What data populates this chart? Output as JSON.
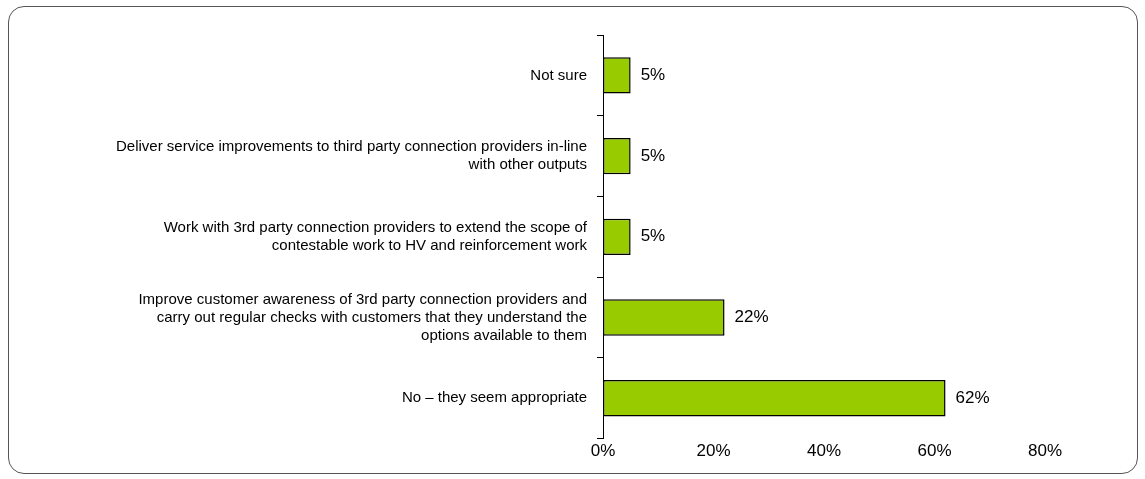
{
  "chart_data": {
    "type": "bar",
    "orientation": "horizontal",
    "categories": [
      "Not sure",
      "Deliver service improvements to third party connection providers in-line with other outputs",
      "Work with 3rd party connection providers to extend the scope of contestable work to HV and reinforcement work",
      "Improve customer awareness of 3rd party connection providers and carry out regular checks with customers that they understand the options available to them",
      "No – they seem appropriate"
    ],
    "values": [
      5,
      5,
      5,
      22,
      62
    ],
    "value_labels": [
      "5%",
      "5%",
      "5%",
      "22%",
      "62%"
    ],
    "color": "#99cc00",
    "xlim": [
      0,
      80
    ],
    "xticks": [
      {
        "value": 0,
        "label": "0%"
      },
      {
        "value": 20,
        "label": "20%"
      },
      {
        "value": 40,
        "label": "40%"
      },
      {
        "value": 60,
        "label": "60%"
      },
      {
        "value": 80,
        "label": "80%"
      }
    ],
    "grid": false,
    "legend": false
  }
}
